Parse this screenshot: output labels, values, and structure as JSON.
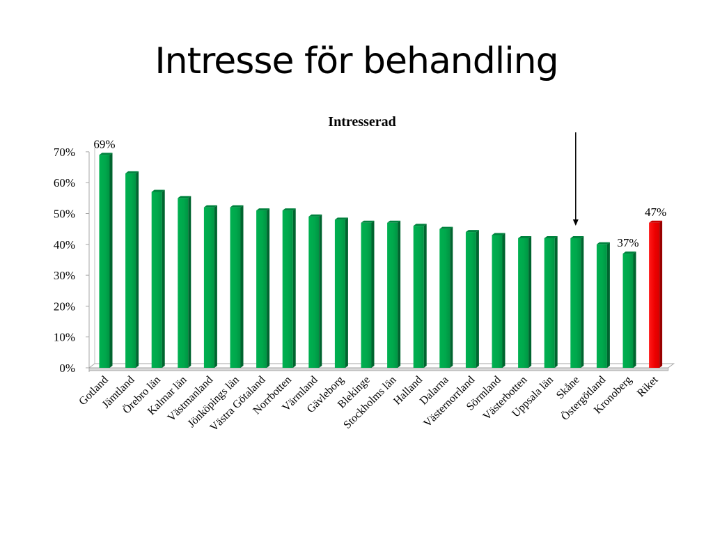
{
  "slide": {
    "title": "Intresse för behandling"
  },
  "chart_data": {
    "type": "bar",
    "title": "Intresserad",
    "xlabel": "",
    "ylabel": "",
    "ylim": [
      0,
      70
    ],
    "yticks": [
      0,
      10,
      20,
      30,
      40,
      50,
      60,
      70
    ],
    "ytick_format": "{v}%",
    "categories": [
      "Gotland",
      "Jämtland",
      "Örebro län",
      "Kalmar län",
      "Västmanland",
      "Jönköpings län",
      "Västra Götaland",
      "Norrbotten",
      "Värmland",
      "Gävleborg",
      "Blekinge",
      "Stockholms län",
      "Halland",
      "Dalarna",
      "Västernorrland",
      "Sörmland",
      "Västerbotten",
      "Uppsala län",
      "Skåne",
      "Östergötland",
      "Kronoberg",
      "Riket"
    ],
    "values": [
      69,
      63,
      57,
      55,
      52,
      52,
      51,
      51,
      49,
      48,
      47,
      47,
      46,
      45,
      44,
      43,
      42,
      42,
      42,
      40,
      37,
      47
    ],
    "data_labels": [
      {
        "category": "Gotland",
        "text": "69%"
      },
      {
        "category": "Kronoberg",
        "text": "37%"
      },
      {
        "category": "Riket",
        "text": "47%"
      }
    ],
    "bar_color": "#00a84f",
    "highlight": {
      "category": "Riket",
      "color": "#ff0000"
    },
    "annotation_arrow": {
      "points_to": "Skåne"
    },
    "grid": false,
    "legend": "none"
  }
}
